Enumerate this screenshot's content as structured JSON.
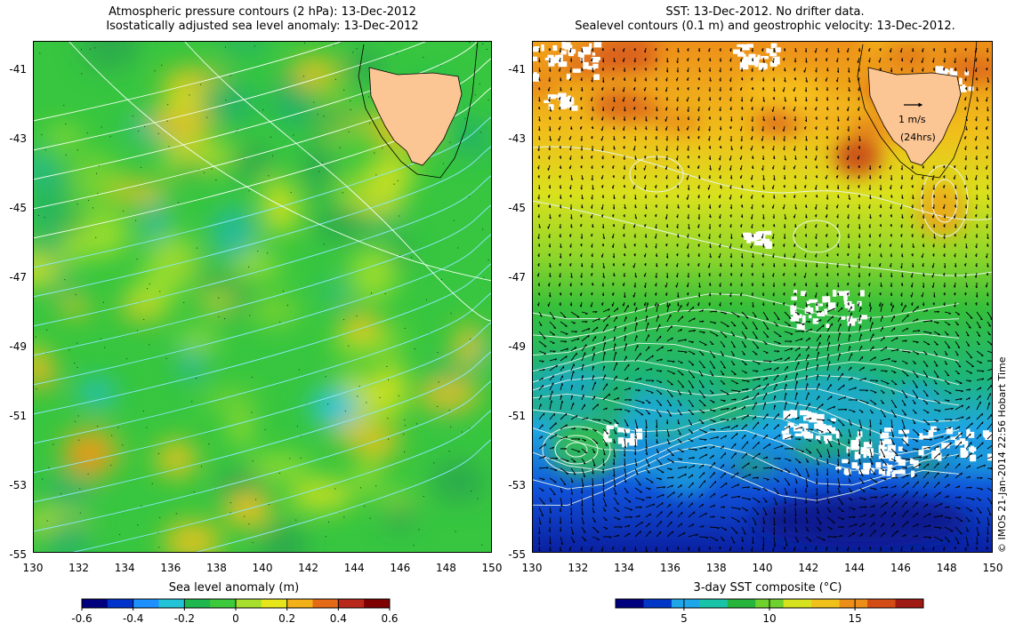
{
  "left_panel": {
    "title_line1": "Atmospheric pressure contours (2 hPa): 13-Dec-2012",
    "title_line2": "Isostatically adjusted sea level anomaly: 13-Dec-2012",
    "colorbar_label": "Sea level anomaly (m)",
    "colorbar_ticks": [
      "-0.6",
      "-0.4",
      "-0.2",
      "0",
      "0.2",
      "0.4",
      "0.6"
    ],
    "colorbar_colors": [
      "#00007f",
      "#0033cc",
      "#1e90ff",
      "#22c3d6",
      "#1fb84f",
      "#3cc93c",
      "#a7e02c",
      "#e6e61a",
      "#f2b019",
      "#e46a17",
      "#b8281a",
      "#7f0000"
    ]
  },
  "right_panel": {
    "title_line1": "SST: 13-Dec-2012. No drifter data.",
    "title_line2": "Sealevel contours (0.1 m) and geostrophic velocity: 13-Dec-2012.",
    "colorbar_label": "3-day SST composite (°C)",
    "colorbar_ticks": [
      "5",
      "10",
      "15"
    ],
    "colorbar_colors": [
      "#00007f",
      "#0037c6",
      "#1fa6e8",
      "#19c3a7",
      "#27b43c",
      "#6fd12d",
      "#d6e21d",
      "#f0c11b",
      "#ec8e18",
      "#d34c16",
      "#9e1a12"
    ],
    "velocity_scale_label_1": "1 m/s",
    "velocity_scale_label_2": "(24hrs)"
  },
  "axes": {
    "lat_ticks": [
      "-41",
      "-43",
      "-45",
      "-47",
      "-49",
      "-51",
      "-53",
      "-55"
    ],
    "lon_ticks": [
      "130",
      "132",
      "134",
      "136",
      "138",
      "140",
      "142",
      "144",
      "146",
      "148",
      "150"
    ]
  },
  "credit": "© IMOS 21-Jan-2014 22:56 Hobart Time",
  "colors": {
    "land": "#fbc594",
    "sla_base": "#33c43a",
    "sst_warm": "#ee8f1a",
    "sst_cold": "#0a2bc0",
    "missing": "#ffffff"
  }
}
